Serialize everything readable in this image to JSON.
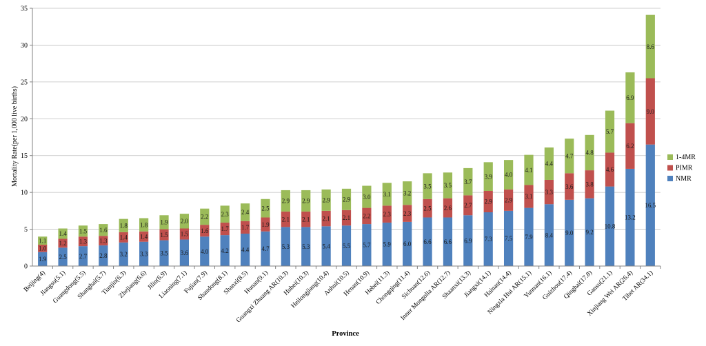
{
  "chart_data": {
    "type": "bar",
    "stacked": true,
    "title": "",
    "xlabel": "Province",
    "ylabel": "Mortality Rate(per 1,000 live births)",
    "ylim": [
      0,
      35
    ],
    "yticks": [
      0,
      5,
      10,
      15,
      20,
      25,
      30,
      35
    ],
    "grid": "horizontal",
    "legend_position": "right",
    "categories": [
      "Beijing(4)",
      "Jiangsu(5.1)",
      "Guangdong(5.5)",
      "Shanghai(5.7)",
      "Tianjin(6.3)",
      "Zhejiang(6.6)",
      "Jilin(6.9)",
      "Liaoning(7.1)",
      "Fujian(7.9)",
      "Shandong(8.1)",
      "Shanxi(8.5)",
      "Hunan(9.1)",
      "Guangxi Zhuang AR(10.3)",
      "Hubei(10.3)",
      "Heilongjiang(10.4)",
      "Anhui(10.5)",
      "Henan(10.9)",
      "Hebei(11.3)",
      "Chongqing(11.4)",
      "Sichuan(12.6)",
      "Inner Mongolia AR(12.7)",
      "Shaanxi(13.3)",
      "Jiangxi(14.1)",
      "Hainan(14.4)",
      "Ningxia Hui AR(15.1)",
      "Yunnan(16.1)",
      "Guizhou(17.4)",
      "Qinghai(17.8)",
      "Gansu(21.1)",
      "Xinjiang Wei AR(26.4)",
      "Tibet AR(34.1)"
    ],
    "series": [
      {
        "name": "NMR",
        "color": "#4f81bd",
        "values": [
          1.9,
          2.5,
          2.7,
          2.8,
          3.2,
          3.3,
          3.5,
          3.6,
          4.0,
          4.2,
          4.4,
          4.7,
          5.3,
          5.3,
          5.4,
          5.5,
          5.7,
          5.9,
          6.0,
          6.6,
          6.6,
          6.9,
          7.3,
          7.5,
          7.9,
          8.4,
          9.0,
          9.2,
          10.8,
          13.2,
          16.5
        ],
        "labels": [
          "1.9",
          "2.5",
          "2.7",
          "2.8",
          "3.2",
          "3.3",
          "3.5",
          "3.6",
          "4.0",
          "4.2",
          "4.4",
          "4.7",
          "5.3",
          "5.3",
          "5.4",
          "5.5",
          "5.7",
          "5.9",
          "6.0",
          "6.6",
          "6.6",
          "6.9",
          "7.3",
          "7.5",
          "7.9",
          "8.4",
          "9.0",
          "9.2",
          "10.8",
          "13.2",
          "16.5"
        ]
      },
      {
        "name": "PIMR",
        "color": "#c0504d",
        "values": [
          1.0,
          1.2,
          1.3,
          1.3,
          1.4,
          1.4,
          1.5,
          1.5,
          1.6,
          1.7,
          1.7,
          1.9,
          2.1,
          2.1,
          2.1,
          2.1,
          2.2,
          2.3,
          2.3,
          2.5,
          2.6,
          2.7,
          2.9,
          2.9,
          3.1,
          3.3,
          3.6,
          3.8,
          4.6,
          6.2,
          9.0
        ],
        "labels": [
          "1.0",
          "1.2",
          "1.3",
          "1.3",
          "1.4",
          "1.4",
          "1.5",
          "1.5",
          "1.6",
          "1.7",
          "1.7",
          "1.9",
          "2.1",
          "2.1",
          "2.1",
          "2.1",
          "2.2",
          "2.3",
          "2.3",
          "2.5",
          "2.6",
          "2.7",
          "2.9",
          "2.9",
          "3.1",
          "3.3",
          "3.6",
          "3.8",
          "4.6",
          "6.2",
          "9.0"
        ]
      },
      {
        "name": "1-4MR",
        "color": "#9bbb59",
        "values": [
          1.1,
          1.4,
          1.5,
          1.6,
          1.8,
          1.8,
          1.9,
          2.0,
          2.2,
          2.3,
          2.4,
          2.5,
          2.9,
          2.9,
          2.9,
          2.9,
          3.0,
          3.1,
          3.2,
          3.5,
          3.5,
          3.7,
          3.9,
          4.0,
          4.1,
          4.4,
          4.7,
          4.8,
          5.7,
          6.9,
          8.6
        ],
        "labels": [
          "1.1",
          "1.4",
          "1.5",
          "1.6",
          "1.8",
          "1.8",
          "1.9",
          "2.0",
          "2.2",
          "2.3",
          "2.4",
          "2.5",
          "2.9",
          "2.9",
          "2.9",
          "2.9",
          "3.0",
          "3.1",
          "3.2",
          "3.5",
          "3.5",
          "3.7",
          "3.9",
          "4.0",
          "4.1",
          "4.4",
          "4.7",
          "4.8",
          "5.7",
          "6.9",
          "8.6"
        ]
      }
    ],
    "legend_order": [
      "1-4MR",
      "PIMR",
      "NMR"
    ],
    "gridline_color": "#bfbfbf",
    "axis_color": "#808080"
  }
}
